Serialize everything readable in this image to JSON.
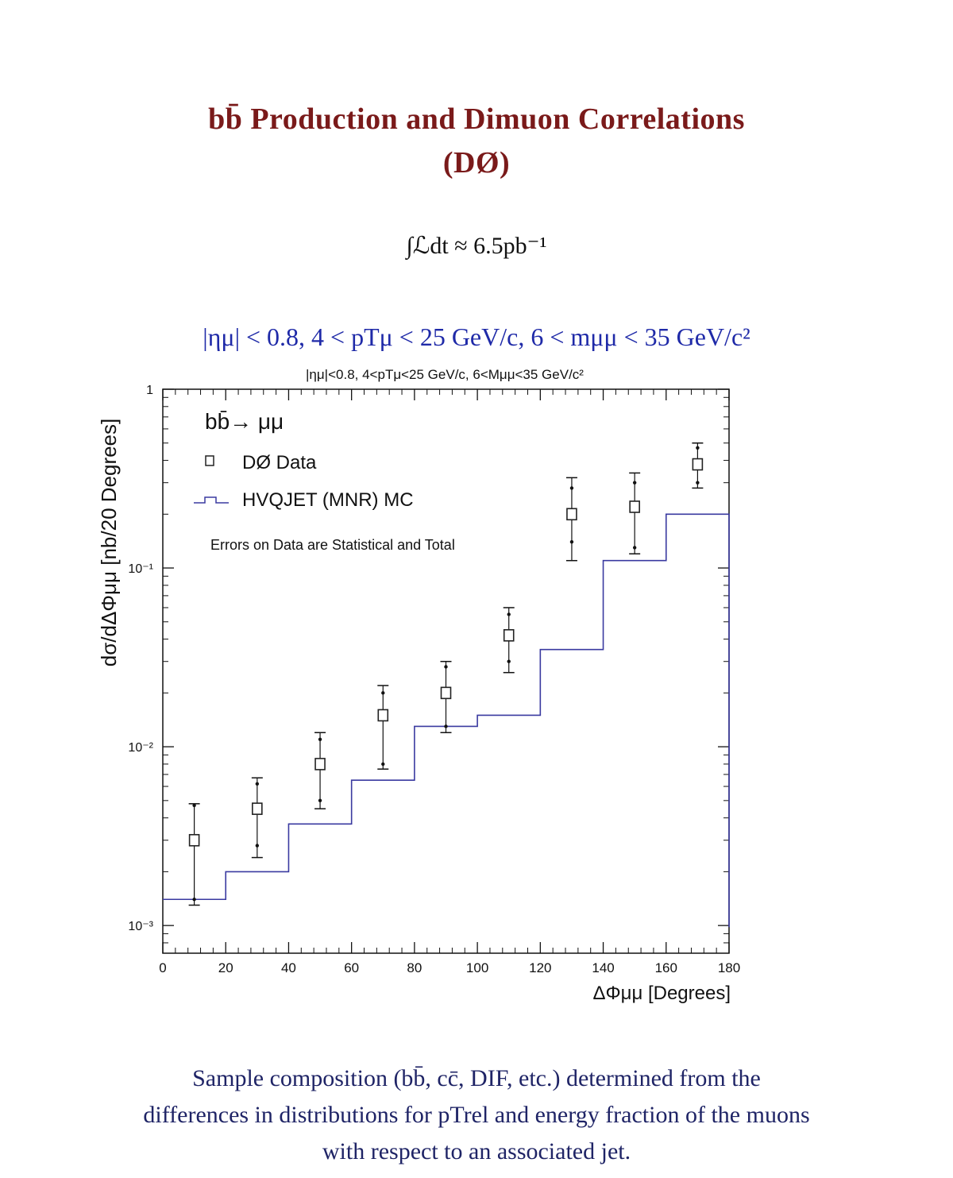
{
  "page": {
    "title_line1": "bb̄ Production and Dimuon Correlations",
    "title_line2": "(DØ)",
    "luminosity": "∫ℒdt ≈ 6.5pb⁻¹",
    "cuts": "|ημ| < 0.8, 4 < pTμ < 25 GeV/c, 6 < mμμ < 35 GeV/c²",
    "caption_line1": "Sample composition (bb̄, cc̄, DIF, etc.) determined from the",
    "caption_line2": "differences in distributions for pTrel and energy fraction of the muons",
    "caption_line3": "with respect to an associated jet."
  },
  "chart_data": {
    "type": "scatter",
    "title": "|ημ|<0.8, 4<pTμ<25 GeV/c, 6<Mμμ<35 GeV/c²",
    "xlabel": "ΔΦμμ [Degrees]",
    "ylabel": "dσ/dΔΦμμ [nb/20 Degrees]",
    "xlim": [
      0,
      180
    ],
    "ylim": [
      0.0007,
      1
    ],
    "yscale": "log",
    "x_ticks": [
      "0",
      "20",
      "40",
      "60",
      "80",
      "100",
      "120",
      "140",
      "160",
      "180"
    ],
    "y_ticks": [
      {
        "value": 1,
        "label": "1"
      },
      {
        "value": 0.1,
        "label": "10⁻¹"
      },
      {
        "value": 0.01,
        "label": "10⁻²"
      },
      {
        "value": 0.001,
        "label": "10⁻³"
      }
    ],
    "legend": {
      "process": "bb̄→ μμ",
      "note": "Errors on Data are Statistical and Total"
    },
    "series": [
      {
        "name": "DØ Data",
        "marker": "open-square",
        "x": [
          10,
          30,
          50,
          70,
          90,
          110,
          130,
          150,
          170
        ],
        "y": [
          0.003,
          0.0045,
          0.008,
          0.015,
          0.02,
          0.042,
          0.2,
          0.22,
          0.38
        ],
        "stat_err_low": [
          0.0014,
          0.0028,
          0.005,
          0.008,
          0.013,
          0.03,
          0.14,
          0.13,
          0.3
        ],
        "stat_err_high": [
          0.0047,
          0.0062,
          0.011,
          0.02,
          0.028,
          0.055,
          0.28,
          0.3,
          0.47
        ],
        "total_err_low": [
          0.0013,
          0.0024,
          0.0045,
          0.0075,
          0.012,
          0.026,
          0.11,
          0.12,
          0.28
        ],
        "total_err_high": [
          0.0048,
          0.0067,
          0.012,
          0.022,
          0.03,
          0.06,
          0.32,
          0.34,
          0.5
        ]
      },
      {
        "name": "HVQJET (MNR) MC",
        "style": "histogram",
        "bin_edges": [
          0,
          20,
          40,
          60,
          80,
          100,
          120,
          140,
          160,
          180
        ],
        "values": [
          0.0014,
          0.002,
          0.0037,
          0.0065,
          0.013,
          0.015,
          0.035,
          0.11,
          0.2
        ]
      }
    ],
    "colors": {
      "data_marker": "#222222",
      "error_bar": "#111111",
      "mc_line": "#3a3aa0",
      "axis": "#111111"
    }
  }
}
